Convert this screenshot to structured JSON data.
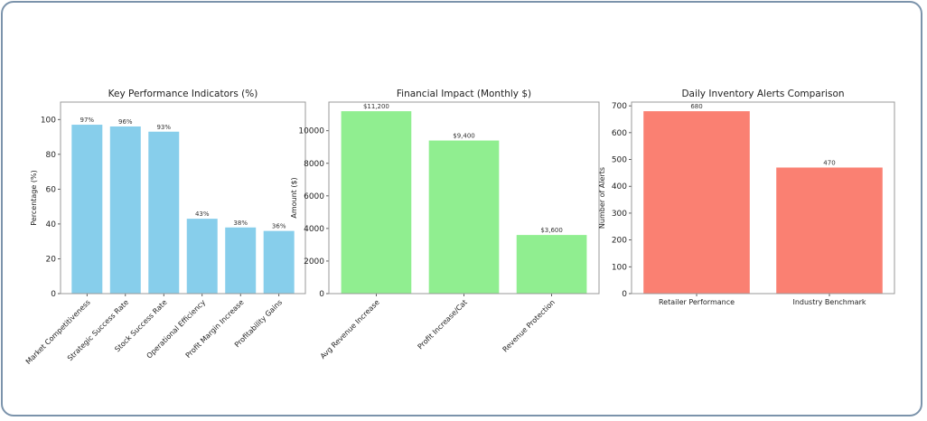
{
  "chart_data": [
    {
      "type": "bar",
      "title": "Key Performance Indicators (%)",
      "xlabel": "",
      "ylabel": "Percentage (%)",
      "categories": [
        "Market Competitiveness",
        "Strategic Success Rate",
        "Stock Success Rate",
        "Operational Efficiency",
        "Profit Margin Increase",
        "Profitability Gains"
      ],
      "values": [
        97,
        96,
        93,
        43,
        38,
        36
      ],
      "data_labels": [
        "97%",
        "96%",
        "93%",
        "43%",
        "38%",
        "36%"
      ],
      "ylim": [
        0,
        110
      ],
      "yticks": [
        0,
        20,
        40,
        60,
        80,
        100
      ],
      "color": "#87ceeb",
      "xtick_rotation": 45,
      "grid": false
    },
    {
      "type": "bar",
      "title": "Financial Impact (Monthly $)",
      "xlabel": "",
      "ylabel": "Amount ($)",
      "categories": [
        "Avg Revenue Increase",
        "Profit Increase/Cat",
        "Revenue Protection"
      ],
      "values": [
        11200,
        9400,
        3600
      ],
      "data_labels": [
        "$11,200",
        "$9,400",
        "$3,600"
      ],
      "ylim": [
        0,
        11760
      ],
      "yticks": [
        0,
        2000,
        4000,
        6000,
        8000,
        10000
      ],
      "color": "#90ee90",
      "xtick_rotation": 45,
      "grid": false
    },
    {
      "type": "bar",
      "title": "Daily Inventory Alerts Comparison",
      "xlabel": "",
      "ylabel": "Number of Alerts",
      "categories": [
        "Retailer Performance",
        "Industry Benchmark"
      ],
      "values": [
        680,
        470
      ],
      "data_labels": [
        "680",
        "470"
      ],
      "ylim": [
        0,
        714
      ],
      "yticks": [
        0,
        100,
        200,
        300,
        400,
        500,
        600,
        700
      ],
      "color": "#fa8072",
      "xtick_rotation": 0,
      "grid": false
    }
  ]
}
